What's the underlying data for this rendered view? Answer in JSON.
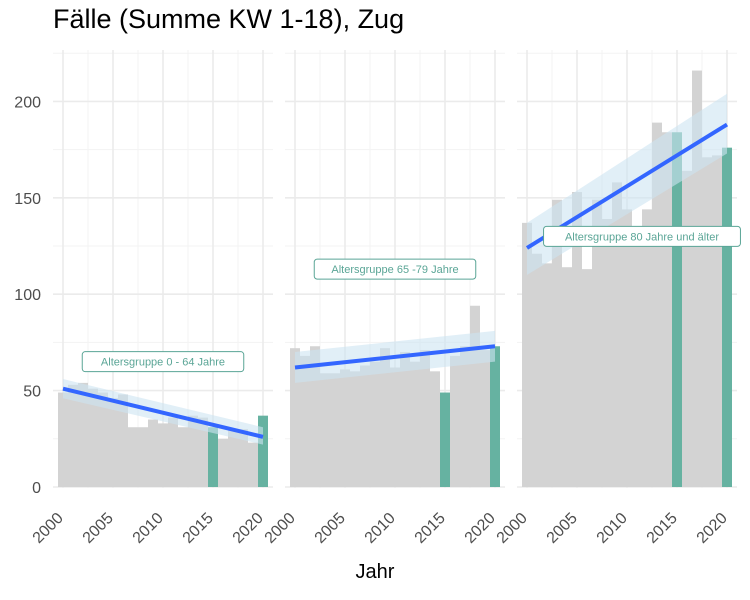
{
  "chart_data": {
    "type": "bar",
    "title": "Fälle (Summe KW 1-18), Zug",
    "xlabel": "Jahr",
    "ylabel": "",
    "ylim": [
      0,
      227
    ],
    "xlim": [
      1999.5,
      2020.5
    ],
    "y_ticks": [
      0,
      50,
      100,
      150,
      200
    ],
    "x_ticks": [
      2000,
      2005,
      2010,
      2015,
      2020
    ],
    "grid": true,
    "colors": {
      "bar": "#d3d3d3",
      "highlight": "#66b2a1",
      "trend": "#3366ff",
      "ribbon": "#cde4f2",
      "label_text": "#5aa596"
    },
    "highlight_years": [
      2015,
      2020
    ],
    "panels": [
      {
        "label": "Altersgruppe 0 - 64 Jahre",
        "x": [
          2000,
          2001,
          2002,
          2003,
          2004,
          2005,
          2006,
          2007,
          2008,
          2009,
          2010,
          2011,
          2012,
          2013,
          2014,
          2015,
          2016,
          2017,
          2018,
          2019,
          2020
        ],
        "values": [
          49,
          53,
          54,
          51,
          49,
          46,
          48,
          31,
          31,
          35,
          33,
          36,
          31,
          37,
          36,
          31,
          25,
          30,
          30,
          23,
          37
        ],
        "trend": {
          "x": [
            2000,
            2020
          ],
          "y": [
            51,
            26
          ],
          "ci_low": [
            46,
            22
          ],
          "ci_high": [
            56,
            31
          ]
        },
        "label_pos": [
          2010,
          65
        ]
      },
      {
        "label": "Altersgruppe 65 -79 Jahre",
        "x": [
          2000,
          2001,
          2002,
          2003,
          2004,
          2005,
          2006,
          2007,
          2008,
          2009,
          2010,
          2011,
          2012,
          2013,
          2014,
          2015,
          2016,
          2017,
          2018,
          2019,
          2020
        ],
        "values": [
          72,
          68,
          73,
          59,
          59,
          61,
          60,
          63,
          65,
          72,
          62,
          70,
          65,
          71,
          60,
          49,
          68,
          73,
          94,
          71,
          73
        ],
        "trend": {
          "x": [
            2000,
            2020
          ],
          "y": [
            62,
            73
          ],
          "ci_low": [
            54,
            65
          ],
          "ci_high": [
            70,
            81
          ]
        },
        "label_pos": [
          2010,
          113
        ]
      },
      {
        "label": "Altersgruppe 80 Jahre und älter",
        "x": [
          2000,
          2001,
          2002,
          2003,
          2004,
          2005,
          2006,
          2007,
          2008,
          2009,
          2010,
          2011,
          2012,
          2013,
          2014,
          2015,
          2016,
          2017,
          2018,
          2019,
          2020
        ],
        "values": [
          137,
          121,
          116,
          149,
          114,
          153,
          113,
          149,
          139,
          158,
          144,
          129,
          144,
          189,
          184,
          184,
          164,
          216,
          171,
          172,
          176
        ],
        "trend": {
          "x": [
            2000,
            2020
          ],
          "y": [
            124,
            188
          ],
          "ci_low": [
            110,
            173
          ],
          "ci_high": [
            137,
            204
          ]
        },
        "label_pos": [
          2011.5,
          130
        ]
      }
    ]
  }
}
